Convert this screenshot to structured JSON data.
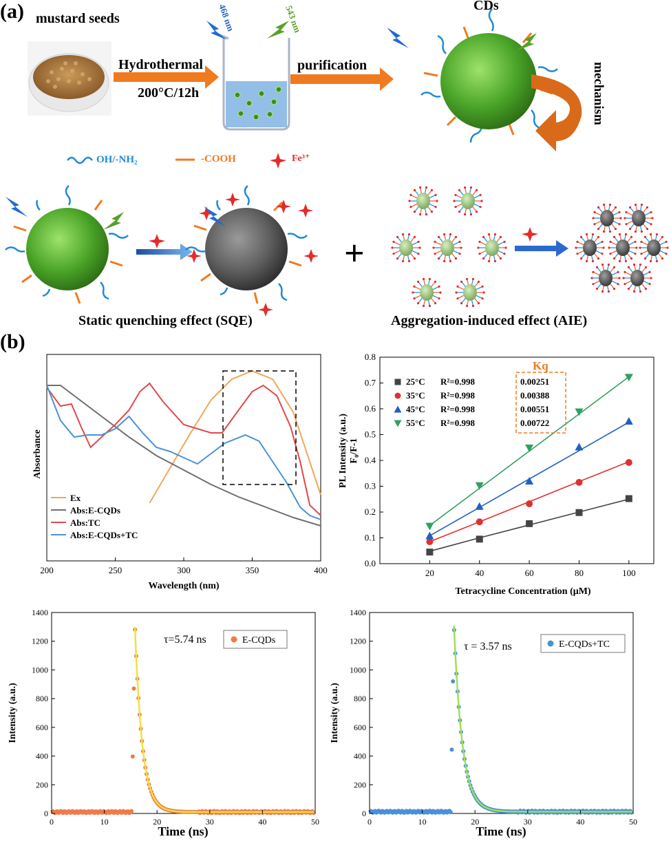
{
  "panel_a": {
    "label": "(a)",
    "source_label": "mustard seeds",
    "step1": {
      "label": "Hydrothermal",
      "condition": "200°C/12h"
    },
    "excitation": "468 nm",
    "emission": "543 nm",
    "step2": "purification",
    "product": "CDs",
    "mechanism": "mechanism",
    "legend": {
      "oh_nh2": "OH/-NH₂",
      "cooh": "-COOH",
      "fe": "Fe³⁺"
    },
    "sqe_label": "Static quenching effect  (SQE)",
    "aie_label": "Aggregation-induced effect (AIE)",
    "plus": "+",
    "colors": {
      "green": "#3d8a22",
      "orange": "#f07a1e",
      "blue": "#1f8ad6",
      "red": "#e62a2a",
      "gray": "#555555"
    }
  },
  "panel_b": {
    "label": "(b)"
  },
  "chart_data": [
    {
      "type": "line",
      "xlabel": "Wavelength (nm)",
      "ylabel": "Absorbance",
      "xlim": [
        200,
        400
      ],
      "xticks": [
        "200",
        "250",
        "300",
        "350",
        "400"
      ],
      "legend_position": "bottom-left",
      "series": [
        {
          "name": "Ex",
          "color": "#f2a55a",
          "x": [
            275,
            290,
            305,
            320,
            335,
            350,
            365,
            380,
            395,
            400
          ],
          "y": [
            0.28,
            0.45,
            0.62,
            0.78,
            0.88,
            0.92,
            0.88,
            0.72,
            0.42,
            0.32
          ]
        },
        {
          "name": "Abs:E-CQDs",
          "color": "#6e6e6e",
          "x": [
            200,
            210,
            220,
            240,
            260,
            280,
            300,
            320,
            340,
            360,
            380,
            400
          ],
          "y": [
            0.85,
            0.85,
            0.8,
            0.7,
            0.6,
            0.51,
            0.44,
            0.37,
            0.31,
            0.26,
            0.21,
            0.17
          ]
        },
        {
          "name": "Abs:TC",
          "color": "#e04848",
          "x": [
            200,
            210,
            218,
            225,
            232,
            240,
            250,
            260,
            268,
            275,
            285,
            300,
            320,
            328,
            340,
            350,
            358,
            368,
            378,
            385,
            392,
            400
          ],
          "y": [
            0.84,
            0.75,
            0.76,
            0.65,
            0.55,
            0.6,
            0.66,
            0.73,
            0.82,
            0.86,
            0.77,
            0.66,
            0.62,
            0.62,
            0.73,
            0.82,
            0.85,
            0.8,
            0.65,
            0.48,
            0.27,
            0.22
          ]
        },
        {
          "name": "Abs:E-CQDs+TC",
          "color": "#4a90d8",
          "x": [
            200,
            210,
            220,
            230,
            240,
            250,
            260,
            270,
            280,
            290,
            300,
            310,
            320,
            330,
            345,
            355,
            365,
            375,
            385,
            392,
            400
          ],
          "y": [
            0.85,
            0.68,
            0.6,
            0.61,
            0.61,
            0.64,
            0.7,
            0.62,
            0.55,
            0.53,
            0.5,
            0.47,
            0.52,
            0.57,
            0.61,
            0.58,
            0.48,
            0.38,
            0.26,
            0.22,
            0.2
          ]
        }
      ]
    },
    {
      "type": "scatter",
      "xlabel": "Tetracycline Concentration (μM)",
      "ylabel": "PL Intensity (a.u.)",
      "ylabel2": "F₀/F-1",
      "xlim": [
        0,
        110
      ],
      "ylim": [
        0,
        0.8
      ],
      "xticks": [
        20,
        40,
        60,
        80,
        100
      ],
      "yticks": [
        "0.0",
        "0.1",
        "0.2",
        "0.3",
        "0.4",
        "0.5",
        "0.6",
        "0.7",
        "0.8"
      ],
      "kq_header": "Kq",
      "legend_position": "top-left",
      "x": [
        20,
        40,
        60,
        80,
        100
      ],
      "series": [
        {
          "name": "25°C",
          "r2": "R²=0.998",
          "kq": "0.00251",
          "color": "#444444",
          "marker": "square",
          "values": [
            0.045,
            0.095,
            0.155,
            0.198,
            0.252
          ],
          "fit": [
            0.048,
            0.1,
            0.15,
            0.2,
            0.25
          ]
        },
        {
          "name": "35°C",
          "r2": "R²=0.998",
          "kq": "0.00388",
          "color": "#e03030",
          "marker": "circle",
          "values": [
            0.085,
            0.162,
            0.232,
            0.315,
            0.392
          ],
          "fit": [
            0.085,
            0.162,
            0.24,
            0.318,
            0.395
          ]
        },
        {
          "name": "45°C",
          "r2": "R²=0.998",
          "kq": "0.00551",
          "color": "#2060c0",
          "marker": "triangle-up",
          "values": [
            0.108,
            0.222,
            0.32,
            0.452,
            0.552
          ],
          "fit": [
            0.108,
            0.218,
            0.328,
            0.438,
            0.548
          ]
        },
        {
          "name": "55°C",
          "r2": "R²=0.998",
          "kq": "0.00722",
          "color": "#30a060",
          "marker": "triangle-down",
          "values": [
            0.145,
            0.302,
            0.448,
            0.588,
            0.722
          ],
          "fit": [
            0.148,
            0.292,
            0.436,
            0.58,
            0.724
          ]
        }
      ]
    },
    {
      "type": "scatter",
      "xlabel": "Time (ns)",
      "ylabel": "Intensity (a.u.)",
      "xlim": [
        0,
        50
      ],
      "ylim": [
        0,
        1400
      ],
      "xticks": [
        "0",
        "10",
        "20",
        "30",
        "40",
        "50"
      ],
      "yticks": [
        "0",
        "200",
        "400",
        "600",
        "800",
        "1000",
        "1200",
        "1400"
      ],
      "annotation": "τ=5.74 ns",
      "legend_position": "top-right",
      "series": [
        {
          "name": "E-CQDs",
          "color": "#f07a4a",
          "fit_color": "#f2e040",
          "peak_time": 15.8,
          "peak_value": 1300,
          "lifetime": 1.4,
          "baseline": 10
        }
      ]
    },
    {
      "type": "scatter",
      "xlabel": "Time (ns)",
      "ylabel": "Intensity (a.u.)",
      "xlim": [
        0,
        50
      ],
      "ylim": [
        0,
        1400
      ],
      "xticks": [
        "0",
        "10",
        "20",
        "30",
        "40",
        "50"
      ],
      "yticks": [
        "0",
        "200",
        "400",
        "600",
        "800",
        "1000",
        "1200",
        "1400"
      ],
      "annotation": "τ = 3.57 ns",
      "legend_position": "top-right",
      "series": [
        {
          "name": "E-CQDs+TC",
          "color": "#4a90d8",
          "fit_color": "#9ee05a",
          "peak_time": 16.0,
          "peak_value": 1310,
          "lifetime": 1.6,
          "baseline": 12
        }
      ]
    }
  ]
}
